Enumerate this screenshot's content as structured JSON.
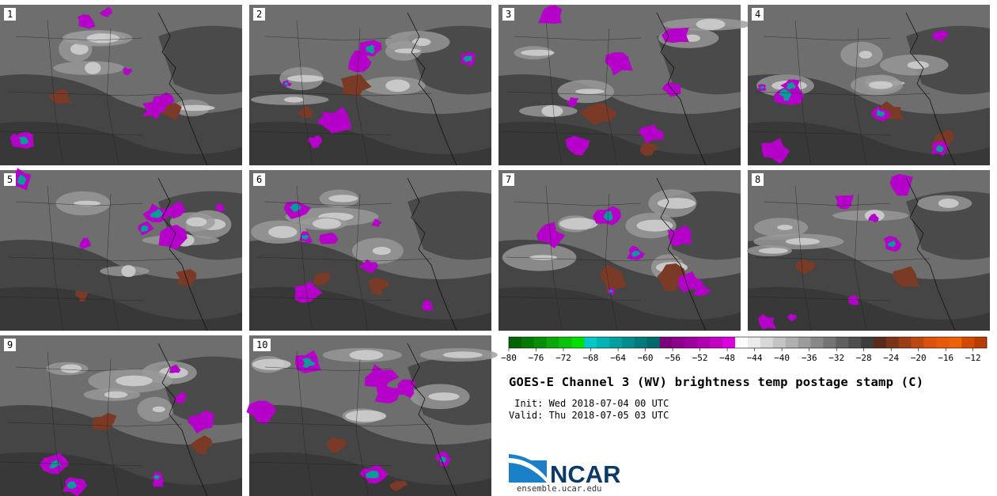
{
  "title": "GOES-E Channel 3 (WV) brightness temp postage stamp (C)",
  "init_label": " Init: Wed 2018-07-04 00 UTC",
  "valid_label": "Valid: Thu 2018-07-05 03 UTC",
  "logo_text": "NCAR",
  "site_url": "ensemble.ucar.edu",
  "panels": [
    "1",
    "2",
    "3",
    "4",
    "5",
    "6",
    "7",
    "8",
    "9",
    "10"
  ],
  "colorbar": {
    "ticks": [
      "−80",
      "−76",
      "−72",
      "−68",
      "−64",
      "−60",
      "−56",
      "−52",
      "−48",
      "−44",
      "−40",
      "−36",
      "−32",
      "−28",
      "−24",
      "−20",
      "−16",
      "−12"
    ],
    "colors": [
      "#006400",
      "#047a04",
      "#088f08",
      "#0aa80a",
      "#0cc20c",
      "#00e000",
      "#00c8c8",
      "#00b4b4",
      "#00a0a0",
      "#008c8c",
      "#007a7a",
      "#006a6a",
      "#7a007a",
      "#8c008c",
      "#9e009e",
      "#b000b0",
      "#c400c4",
      "#dc00dc",
      "#ffffff",
      "#ececec",
      "#d8d8d8",
      "#c4c4c4",
      "#b0b0b0",
      "#9c9c9c",
      "#888888",
      "#747474",
      "#606060",
      "#4e4e4e",
      "#3c3c3c",
      "#5a2a1a",
      "#7a3418",
      "#9a3e14",
      "#bb4810",
      "#dc520c",
      "#e85a08",
      "#f06004",
      "#d24a00",
      "#b83c00"
    ]
  }
}
